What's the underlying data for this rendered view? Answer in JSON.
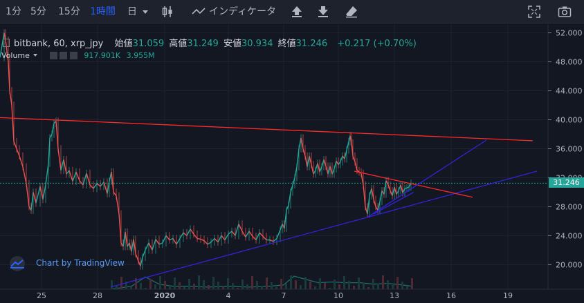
{
  "toolbar": {
    "intervals": [
      "1分",
      "5分",
      "15分",
      "1時間",
      "日"
    ],
    "active_interval": "1時間",
    "indicators_label": "インディケータ",
    "icons": [
      "candles-icon",
      "indicators-icon",
      "upload-icon",
      "download-icon",
      "eraser-icon",
      "fullscreen-icon",
      "camera-icon"
    ]
  },
  "legend": {
    "symbol": "bitbank, 60, xrp_jpy",
    "open_label": "始値",
    "open": "31.059",
    "high_label": "高値",
    "high": "31.249",
    "low_label": "安値",
    "low": "30.934",
    "close_label": "終値",
    "close": "31.246",
    "change": "+0.217 (+0.70%)",
    "volume_label": "Volume",
    "volume1": "917.901K",
    "volume2": "3.955M"
  },
  "watermark": "Chart by TradingView",
  "colors": {
    "background": "#131722",
    "up": "#26a69a",
    "down": "#ef5350",
    "resistance_line": "#ff2a2a",
    "support_line": "#3322dd",
    "price_line": "#26a69a",
    "active": "#2962ff"
  },
  "chart_data": {
    "type": "candlestick",
    "y_ticks": [
      "52.000",
      "48.000",
      "44.000",
      "40.000",
      "36.000",
      "32.000",
      "28.000",
      "24.000",
      "20.000"
    ],
    "y_range": [
      16.6,
      53.2
    ],
    "x_ticks": [
      "25",
      "28",
      "2020",
      "4",
      "7",
      "10",
      "13",
      "16",
      "19"
    ],
    "last_price": "31.246",
    "price_path": [
      [
        0,
        48.6
      ],
      [
        6,
        52.0
      ],
      [
        8,
        51.0
      ],
      [
        12,
        48.0
      ],
      [
        14,
        44.0
      ],
      [
        17,
        42.0
      ],
      [
        20,
        37.0
      ],
      [
        24,
        36.0
      ],
      [
        28,
        35.0
      ],
      [
        33,
        33.5
      ],
      [
        38,
        31.2
      ],
      [
        42,
        28.0
      ],
      [
        45,
        27.5
      ],
      [
        48,
        30.0
      ],
      [
        52,
        28.5
      ],
      [
        58,
        30.8
      ],
      [
        62,
        29.0
      ],
      [
        66,
        31.0
      ],
      [
        70,
        34.0
      ],
      [
        72,
        37.5
      ],
      [
        75,
        38.0
      ],
      [
        78,
        39.5
      ],
      [
        81,
        39.8
      ],
      [
        84,
        36.0
      ],
      [
        88,
        33.0
      ],
      [
        92,
        34.5
      ],
      [
        96,
        32.5
      ],
      [
        100,
        33.0
      ],
      [
        105,
        31.5
      ],
      [
        110,
        32.8
      ],
      [
        115,
        31.6
      ],
      [
        120,
        31.0
      ],
      [
        125,
        32.6
      ],
      [
        130,
        31.0
      ],
      [
        135,
        30.5
      ],
      [
        140,
        31.2
      ],
      [
        145,
        30.8
      ],
      [
        150,
        31.4
      ],
      [
        155,
        29.8
      ],
      [
        158,
        31.5
      ],
      [
        161,
        32.8
      ],
      [
        164,
        30.0
      ],
      [
        168,
        29.5
      ],
      [
        172,
        27.0
      ],
      [
        175,
        23.0
      ],
      [
        178,
        22.5
      ],
      [
        181,
        24.5
      ],
      [
        184,
        22.5
      ],
      [
        187,
        23.0
      ],
      [
        190,
        21.8
      ],
      [
        193,
        23.5
      ],
      [
        196,
        21.5
      ],
      [
        200,
        20.5
      ],
      [
        203,
        19.8
      ],
      [
        206,
        21.0
      ],
      [
        210,
        22.0
      ],
      [
        215,
        23.0
      ],
      [
        220,
        22.0
      ],
      [
        225,
        23.5
      ],
      [
        230,
        22.8
      ],
      [
        235,
        23.0
      ],
      [
        240,
        24.0
      ],
      [
        245,
        23.4
      ],
      [
        250,
        23.6
      ],
      [
        255,
        22.8
      ],
      [
        260,
        23.6
      ],
      [
        265,
        24.4
      ],
      [
        270,
        24.0
      ],
      [
        275,
        24.9
      ],
      [
        280,
        24.2
      ],
      [
        285,
        23.6
      ],
      [
        290,
        23.5
      ],
      [
        295,
        23.3
      ],
      [
        300,
        22.8
      ],
      [
        305,
        23.1
      ],
      [
        310,
        23.6
      ],
      [
        315,
        23.1
      ],
      [
        320,
        24.0
      ],
      [
        325,
        23.4
      ],
      [
        330,
        24.2
      ],
      [
        335,
        24.6
      ],
      [
        340,
        24.0
      ],
      [
        345,
        25.6
      ],
      [
        350,
        24.6
      ],
      [
        355,
        23.8
      ],
      [
        360,
        24.6
      ],
      [
        365,
        23.9
      ],
      [
        370,
        23.4
      ],
      [
        375,
        24.4
      ],
      [
        380,
        23.9
      ],
      [
        385,
        23.4
      ],
      [
        390,
        23.4
      ],
      [
        395,
        23.2
      ],
      [
        400,
        23.6
      ],
      [
        405,
        24.8
      ],
      [
        408,
        25.6
      ],
      [
        411,
        25.0
      ],
      [
        414,
        27.5
      ],
      [
        417,
        28.2
      ],
      [
        420,
        30.0
      ],
      [
        423,
        31.0
      ],
      [
        426,
        32.0
      ],
      [
        429,
        33.5
      ],
      [
        432,
        36.0
      ],
      [
        435,
        37.5
      ],
      [
        438,
        36.0
      ],
      [
        441,
        35.0
      ],
      [
        444,
        33.5
      ],
      [
        447,
        35.0
      ],
      [
        450,
        33.8
      ],
      [
        453,
        32.5
      ],
      [
        456,
        33.0
      ],
      [
        459,
        34.0
      ],
      [
        462,
        32.8
      ],
      [
        465,
        33.5
      ],
      [
        468,
        34.5
      ],
      [
        471,
        33.6
      ],
      [
        474,
        32.5
      ],
      [
        477,
        33.6
      ],
      [
        480,
        32.5
      ],
      [
        483,
        33.2
      ],
      [
        486,
        34.3
      ],
      [
        489,
        33.8
      ],
      [
        492,
        34.2
      ],
      [
        495,
        35.0
      ],
      [
        498,
        34.6
      ],
      [
        501,
        35.8
      ],
      [
        504,
        37.0
      ],
      [
        506,
        37.8
      ],
      [
        508,
        36.8
      ],
      [
        510,
        35.0
      ],
      [
        513,
        34.2
      ],
      [
        516,
        33.0
      ],
      [
        519,
        32.8
      ],
      [
        522,
        32.6
      ],
      [
        525,
        31.0
      ],
      [
        528,
        28.0
      ],
      [
        531,
        27.0
      ],
      [
        534,
        29.5
      ],
      [
        537,
        30.5
      ],
      [
        540,
        29.0
      ],
      [
        543,
        28.0
      ],
      [
        546,
        27.5
      ],
      [
        549,
        28.7
      ],
      [
        552,
        30.2
      ],
      [
        555,
        29.7
      ],
      [
        558,
        31.6
      ],
      [
        561,
        31.0
      ],
      [
        564,
        30.2
      ],
      [
        567,
        29.5
      ],
      [
        570,
        30.7
      ],
      [
        573,
        29.7
      ],
      [
        576,
        30.2
      ],
      [
        579,
        31.0
      ],
      [
        582,
        29.9
      ],
      [
        585,
        30.5
      ],
      [
        588,
        30.6
      ],
      [
        591,
        30.7
      ],
      [
        594,
        31.246
      ]
    ],
    "volume_path": [
      [
        160,
        16.6
      ],
      [
        190,
        17.0
      ],
      [
        210,
        18.3
      ],
      [
        230,
        17.3
      ],
      [
        250,
        17.0
      ],
      [
        270,
        17.0
      ],
      [
        300,
        16.9
      ],
      [
        330,
        17.0
      ],
      [
        360,
        16.9
      ],
      [
        390,
        17.0
      ],
      [
        410,
        17.2
      ],
      [
        425,
        18.4
      ],
      [
        440,
        18.0
      ],
      [
        460,
        17.5
      ],
      [
        480,
        17.6
      ],
      [
        500,
        17.5
      ],
      [
        520,
        17.5
      ],
      [
        540,
        17.3
      ],
      [
        560,
        17.4
      ],
      [
        580,
        17.2
      ],
      [
        596,
        17.0
      ]
    ],
    "trendlines": [
      {
        "color": "resistance",
        "from": [
          0,
          40.3
        ],
        "to": [
          770,
          37.1
        ]
      },
      {
        "color": "support",
        "from": [
          160,
          16.9
        ],
        "to": [
          776,
          32.9
        ]
      },
      {
        "color": "resistance",
        "from": [
          512,
          32.9
        ],
        "to": [
          683,
          29.3
        ]
      },
      {
        "color": "support",
        "from": [
          532,
          26.6
        ],
        "to": [
          703,
          37.2
        ]
      },
      {
        "color": "support",
        "from": [
          540,
          27.0
        ],
        "to": [
          598,
          30.0
        ]
      }
    ]
  }
}
